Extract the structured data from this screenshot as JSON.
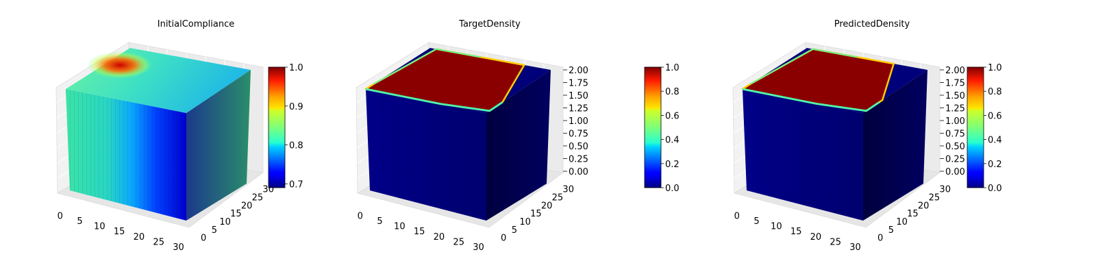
{
  "chart_data": [
    {
      "type": "3d-voxel",
      "title": "InitialCompliance",
      "colormap": "jet",
      "x_ticks": [
        "0",
        "5",
        "10",
        "15",
        "20",
        "25",
        "30"
      ],
      "y_ticks": [
        "0",
        "5",
        "10",
        "15",
        "20",
        "25",
        "30"
      ],
      "z_ticks": [],
      "colorbar_range": [
        0.69,
        1.0
      ],
      "colorbar_ticks": [
        {
          "value": 0.7,
          "label": "0.7"
        },
        {
          "value": 0.8,
          "label": "0.8"
        },
        {
          "value": 0.9,
          "label": "0.9"
        },
        {
          "value": 1.0,
          "label": "1.0"
        }
      ],
      "grid": true
    },
    {
      "type": "3d-voxel",
      "title": "TargetDensity",
      "colormap": "jet",
      "x_ticks": [
        "0",
        "5",
        "10",
        "15",
        "20",
        "25",
        "30"
      ],
      "y_ticks": [
        "0",
        "5",
        "10",
        "15",
        "20",
        "25",
        "30"
      ],
      "z_ticks": [
        "0.00",
        "0.25",
        "0.50",
        "0.75",
        "1.00",
        "1.25",
        "1.50",
        "1.75",
        "2.00"
      ],
      "colorbar_range": [
        0.0,
        1.0
      ],
      "colorbar_ticks": [
        {
          "value": 0.0,
          "label": "0.0"
        },
        {
          "value": 0.2,
          "label": "0.2"
        },
        {
          "value": 0.4,
          "label": "0.4"
        },
        {
          "value": 0.6,
          "label": "0.6"
        },
        {
          "value": 0.8,
          "label": "0.8"
        },
        {
          "value": 1.0,
          "label": "1.0"
        }
      ],
      "grid": true
    },
    {
      "type": "3d-voxel",
      "title": "PredictedDensity",
      "colormap": "jet",
      "x_ticks": [
        "0",
        "5",
        "10",
        "15",
        "20",
        "25",
        "30"
      ],
      "y_ticks": [
        "0",
        "5",
        "10",
        "15",
        "20",
        "25",
        "30"
      ],
      "z_ticks": [
        "0.00",
        "0.25",
        "0.50",
        "0.75",
        "1.00",
        "1.25",
        "1.50",
        "1.75",
        "2.00"
      ],
      "colorbar_range": [
        0.0,
        1.0
      ],
      "colorbar_ticks": [
        {
          "value": 0.0,
          "label": "0.0"
        },
        {
          "value": 0.2,
          "label": "0.2"
        },
        {
          "value": 0.4,
          "label": "0.4"
        },
        {
          "value": 0.6,
          "label": "0.6"
        },
        {
          "value": 0.8,
          "label": "0.8"
        },
        {
          "value": 1.0,
          "label": "1.0"
        }
      ],
      "grid": true
    }
  ]
}
